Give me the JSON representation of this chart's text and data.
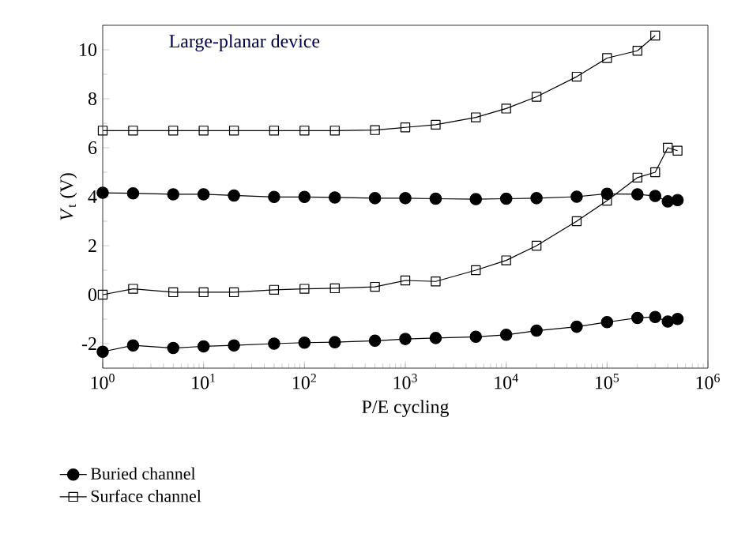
{
  "chart_data": {
    "type": "line",
    "xlabel": "P/E cycling",
    "ylabel": "*V*$_{t}$ (V)",
    "annotations": [
      "Large-planar device"
    ],
    "log": "x",
    "xlim": [
      1,
      1000000
    ],
    "ylim": [
      -3,
      11
    ],
    "xticks": [
      {
        "value": 1,
        "label": "10$^{0}$"
      },
      {
        "value": 10,
        "label": "10$^{1}$"
      },
      {
        "value": 100,
        "label": "10$^{2}$"
      },
      {
        "value": 1000,
        "label": "10$^{3}$"
      },
      {
        "value": 10000,
        "label": "10$^{4}$"
      },
      {
        "value": 100000,
        "label": "10$^{5}$"
      },
      {
        "value": 1000000,
        "label": "10$^{6}$"
      }
    ],
    "yticks": [
      -2,
      0,
      2,
      4,
      6,
      8,
      10
    ],
    "x": [
      1,
      2,
      5,
      10,
      20,
      50,
      100,
      200,
      500,
      1000,
      2000,
      5000,
      10000,
      20000,
      50000,
      100000,
      200000,
      300000,
      400000,
      500000
    ],
    "legend": "bottom left",
    "grid": false,
    "series": [
      {
        "name": "Buried channel",
        "color": "#000000",
        "marker": "circle",
        "values": [
          4.16,
          4.14,
          4.1,
          4.1,
          4.05,
          3.99,
          3.99,
          3.97,
          3.94,
          3.94,
          3.92,
          3.9,
          3.92,
          3.94,
          4.0,
          4.12,
          4.1,
          4.03,
          3.81,
          3.86
        ]
      },
      {
        "color": "#000000",
        "marker": "circle",
        "values": [
          -2.33,
          -2.07,
          -2.18,
          -2.11,
          -2.07,
          -2.0,
          -1.96,
          -1.94,
          -1.88,
          -1.81,
          -1.77,
          -1.72,
          -1.64,
          -1.47,
          -1.31,
          -1.12,
          -0.95,
          -0.91,
          -1.1,
          -0.99
        ]
      },
      {
        "name": "Surface channel",
        "color": "#000000",
        "marker": "square",
        "values": [
          6.7,
          6.7,
          6.7,
          6.7,
          6.7,
          6.7,
          6.7,
          6.7,
          6.72,
          6.83,
          6.94,
          7.24,
          7.6,
          8.08,
          8.9,
          9.66,
          9.96,
          10.58,
          null,
          null
        ]
      },
      {
        "color": "#000000",
        "marker": "square",
        "values": [
          0.0,
          0.24,
          0.1,
          0.1,
          0.1,
          0.2,
          0.24,
          0.26,
          0.32,
          0.58,
          0.54,
          1.0,
          1.4,
          2.0,
          3.0,
          3.84,
          4.78,
          5.0,
          6.0,
          5.88
        ]
      }
    ]
  }
}
